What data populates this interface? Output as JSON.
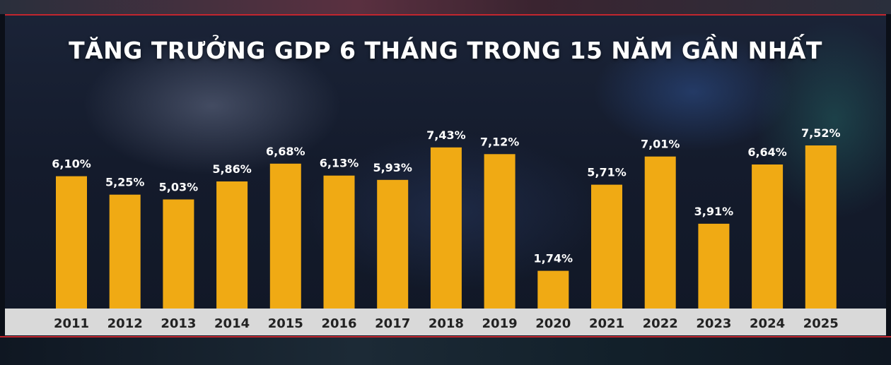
{
  "chart_data": {
    "type": "bar",
    "title": "TĂNG TRƯỞNG GDP 6 THÁNG TRONG 15 NĂM GẦN NHẤT",
    "categories": [
      "2011",
      "2012",
      "2013",
      "2014",
      "2015",
      "2016",
      "2017",
      "2018",
      "2019",
      "2020",
      "2021",
      "2022",
      "2023",
      "2024",
      "2025"
    ],
    "values": [
      6.1,
      5.25,
      5.03,
      5.86,
      6.68,
      6.13,
      5.93,
      7.43,
      7.12,
      1.74,
      5.71,
      7.01,
      3.91,
      6.64,
      7.52
    ],
    "value_labels": [
      "6,10%",
      "5,25%",
      "5,03%",
      "5,86%",
      "6,68%",
      "6,13%",
      "5,93%",
      "7,43%",
      "7,12%",
      "1,74%",
      "5,71%",
      "7,01%",
      "3,91%",
      "6,64%",
      "7,52%"
    ],
    "ylim": [
      0,
      7.52
    ],
    "grid": false,
    "legend": "none",
    "xlabel": "",
    "ylabel": "",
    "colors": {
      "bar": "#f0aa14",
      "axis_band": "#d9d9d9",
      "accent_line": "#c2262e",
      "value_text": "#ffffff",
      "tick_text": "#222222"
    }
  }
}
